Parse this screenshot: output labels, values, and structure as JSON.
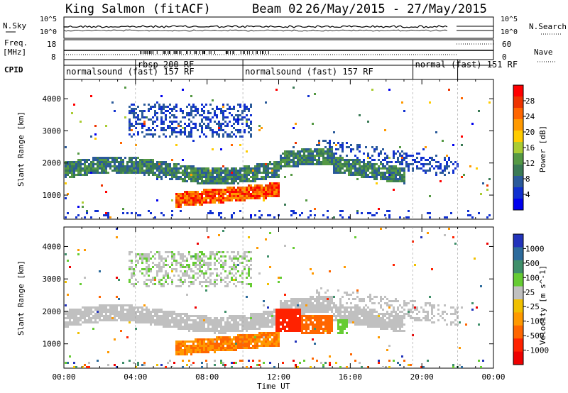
{
  "header": {
    "station": "King Salmon (fitACF)",
    "beam": "Beam 02",
    "dates": "26/May/2015 - 27/May/2015"
  },
  "strips": {
    "nsky": {
      "label": "N.Sky",
      "ticks": [
        "10^5",
        "10^0"
      ]
    },
    "nsearch": {
      "label": "N.Search",
      "ticks": [
        "10^5",
        "10^0"
      ]
    },
    "freq": {
      "label_top": "Freq.",
      "label_bottom": "[MHz]",
      "ticks": [
        "18",
        "8"
      ]
    },
    "nave": {
      "label": "Nave",
      "ticks": [
        "60",
        "0"
      ]
    },
    "cpid": {
      "label": "CPID"
    }
  },
  "modes": [
    {
      "text": "normalsound (fast) 157 RF",
      "start_hour": 0,
      "end_hour": 4,
      "row": 1
    },
    {
      "text": "rbsp 200 RF",
      "start_hour": 4,
      "end_hour": 10,
      "row": 0
    },
    {
      "text": "normalsound (fast) 157 RF",
      "start_hour": 10,
      "end_hour": 19.5,
      "row": 1
    },
    {
      "text": "normal (fast) 151 RF",
      "start_hour": 19.5,
      "end_hour": 22,
      "row": 0
    }
  ],
  "power_bar": {
    "title": "Power [dB]",
    "ticks": [
      "28",
      "24",
      "20",
      "16",
      "12",
      "8",
      "4"
    ],
    "colors": [
      "#ff0000",
      "#ee3300",
      "#ff6600",
      "#ff9900",
      "#ffcc00",
      "#aacc33",
      "#559944",
      "#3a7a55",
      "#2a5a9a",
      "#1030d0",
      "#0000ee"
    ]
  },
  "velocity_bar": {
    "title": "Velocity [m s^-1]",
    "ticks": [
      "1000",
      "500",
      "100",
      "25",
      "-25",
      "-100",
      "-500",
      "-1000"
    ],
    "colors": [
      "#2233bb",
      "#2d6b9c",
      "#3f8f6a",
      "#66cc33",
      "#c0c0c0",
      "#f0c000",
      "#ff9900",
      "#ff6600",
      "#ff2200",
      "#ee0000"
    ]
  },
  "chart_data": [
    {
      "type": "heatmap",
      "name": "Power",
      "ylabel": "Slant Range [km]",
      "xlabel": "",
      "ylim": [
        250,
        4600
      ],
      "xlim_hours": [
        0,
        24
      ],
      "yticks": [
        1000,
        2000,
        3000,
        4000
      ],
      "xticks": [
        "00:00",
        "04:00",
        "08:00",
        "12:00",
        "16:00",
        "20:00",
        "00:00"
      ],
      "features": [
        {
          "label": "main band",
          "hours": [
            0,
            19
          ],
          "range_km": [
            1500,
            2300
          ],
          "level_db": 14
        },
        {
          "label": "upper patch",
          "hours": [
            3.5,
            10.5
          ],
          "range_km": [
            2800,
            3900
          ],
          "level_db": 6
        },
        {
          "label": "low band",
          "hours": [
            6.2,
            12
          ],
          "range_km": [
            650,
            1250
          ],
          "level_db": 22
        }
      ]
    },
    {
      "type": "heatmap",
      "name": "Velocity",
      "ylabel": "Slant Range [km]",
      "xlabel": "Time UT",
      "ylim": [
        250,
        4600
      ],
      "xlim_hours": [
        0,
        24
      ],
      "yticks": [
        1000,
        2000,
        3000,
        4000
      ],
      "xticks": [
        "00:00",
        "04:00",
        "08:00",
        "12:00",
        "16:00",
        "20:00",
        "00:00"
      ],
      "features": [
        {
          "label": "main band",
          "hours": [
            0,
            19
          ],
          "range_km": [
            1500,
            2300
          ],
          "velocity_ms": 0
        },
        {
          "label": "low band",
          "hours": [
            6.2,
            12
          ],
          "range_km": [
            650,
            1250
          ],
          "velocity_ms": -300
        },
        {
          "label": "red patch",
          "hours": [
            11.8,
            13.2
          ],
          "range_km": [
            1400,
            2150
          ],
          "velocity_ms": -900
        }
      ]
    }
  ]
}
